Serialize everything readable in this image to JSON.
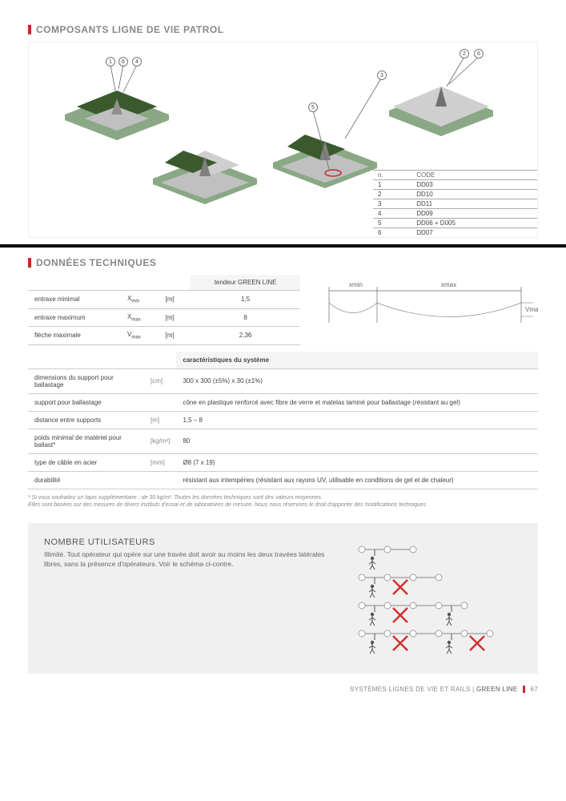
{
  "section1": {
    "title": "COMPOSANTS LIGNE DE VIE PATROL"
  },
  "codes": {
    "header_n": "n.",
    "header_code": "CODE",
    "rows": [
      {
        "n": "1",
        "code": "DD03"
      },
      {
        "n": "2",
        "code": "DD10"
      },
      {
        "n": "3",
        "code": "DD11"
      },
      {
        "n": "4",
        "code": "DD09"
      },
      {
        "n": "5",
        "code": "DD06 + D005"
      },
      {
        "n": "6",
        "code": "DD07"
      }
    ]
  },
  "callouts": [
    "1",
    "6",
    "4",
    "5",
    "3",
    "2",
    "6"
  ],
  "section2": {
    "title": "DONNÉES TECHNIQUES"
  },
  "tech": {
    "header": "tendeur GREEN LINE",
    "rows": [
      {
        "label": "entraxe minimal",
        "sym": "X",
        "sub": "min",
        "unit": "[m]",
        "val": "1,5"
      },
      {
        "label": "entraxe maximum",
        "sym": "X",
        "sub": "max",
        "unit": "[m]",
        "val": "8"
      },
      {
        "label": "flèche maximale",
        "sym": "V",
        "sub": "max",
        "unit": "[m]",
        "val": "2,36"
      }
    ]
  },
  "schematic": {
    "xmin": "xmin",
    "xmax": "xmax",
    "vmax": "Vmax"
  },
  "system": {
    "header": "caractéristiques du système",
    "rows": [
      {
        "label": "dimensions du support pour ballastage",
        "unit": "[cm]",
        "val": "300 x 300 (±5%) x 30 (±1%)"
      },
      {
        "label": "support pour ballastage",
        "unit": "",
        "val": "cône en plastique renforcé avec fibre de verre et matelas laminé pour ballastage (résistant au gel)"
      },
      {
        "label": "distance entre supports",
        "unit": "[m]",
        "val": "1,5 – 8"
      },
      {
        "label": "poids minimal de matériel pour ballast*",
        "unit": "[kg/m²]",
        "val": "80"
      },
      {
        "label": "type de câble en acier",
        "unit": "[mm]",
        "val": "Ø8 (7 x 19)"
      },
      {
        "label": "durabilité",
        "unit": "",
        "val": "résistant aux intempéries (résistant aux rayons UV, utilisable en conditions de gel et de chaleur)"
      }
    ]
  },
  "footnote": "* Si vous souhaitez un tapis supplémentaire : de 30 kg/m². Toutes les données techniques sont des valeurs moyennes.\nElles sont basées sur des mesures de divers instituts d'essai et de laboratoires de mesure. Nous nous réservons le droit d'apporter des modifications techniques",
  "users": {
    "title": "NOMBRE UTILISATEURS",
    "body": "Illimité. Tout opérateur qui opère sur une travée doit avoir au moins les deux travées latérales libres, sans la présence d'opérateurs. Voir le schéma ci-contre."
  },
  "footer": {
    "left": "SYSTÈMES LIGNES DE VIE ET RAILS",
    "brand": "GREEN LINE",
    "page": "67"
  },
  "colors": {
    "grass": "#3a5a2e",
    "grass_dark": "#2d4522",
    "base": "#a8c4a0",
    "metal": "#b8b8b8",
    "gravel": "#cfcfcf",
    "red": "#c62828",
    "cross": "#d32f2f",
    "line": "#888888",
    "node": "#9e9e9e"
  },
  "users_diagram": {
    "rows": [
      {
        "nodes": 3,
        "workers": [
          0
        ],
        "crosses": []
      },
      {
        "nodes": 4,
        "workers": [
          0
        ],
        "crosses": [
          1
        ]
      },
      {
        "nodes": 5,
        "workers": [
          0,
          3
        ],
        "crosses": [
          1
        ]
      },
      {
        "nodes": 6,
        "workers": [
          0,
          3
        ],
        "crosses": [
          1,
          4
        ]
      }
    ],
    "spacing": 32,
    "node_r": 4
  }
}
